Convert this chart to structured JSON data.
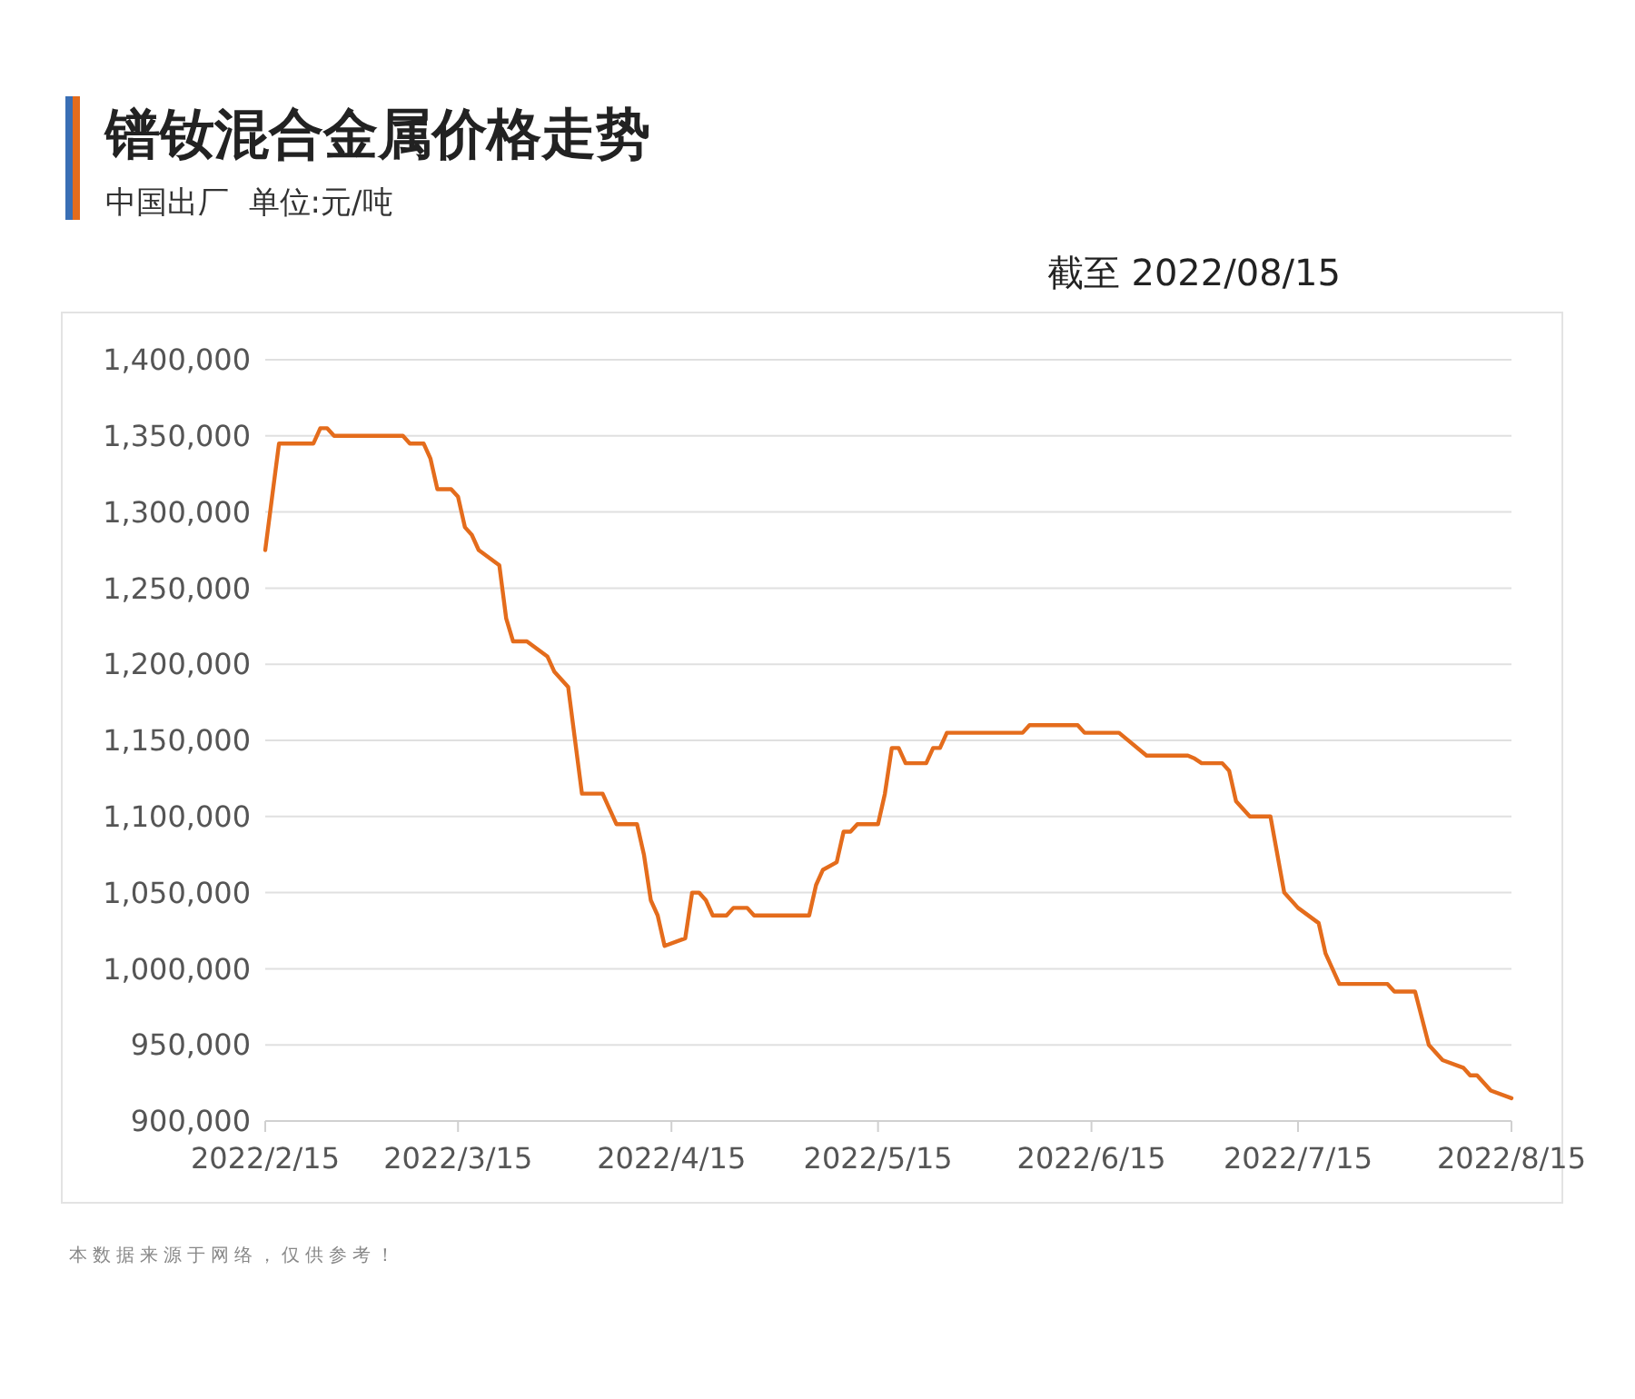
{
  "chart_data": {
    "type": "line",
    "title": "镨钕混合金属价格走势",
    "subtitle": "中国出厂  单位:元/吨",
    "annotations": [
      "截至 2022/08/15",
      "本数据来源于网络，仅供参考！"
    ],
    "x": [
      "2022-02-15",
      "2022-02-17",
      "2022-02-22",
      "2022-02-23",
      "2022-02-24",
      "2022-02-25",
      "2022-03-07",
      "2022-03-08",
      "2022-03-10",
      "2022-03-11",
      "2022-03-12",
      "2022-03-14",
      "2022-03-15",
      "2022-03-16",
      "2022-03-17",
      "2022-03-18",
      "2022-03-21",
      "2022-03-22",
      "2022-03-23",
      "2022-03-25",
      "2022-03-28",
      "2022-03-29",
      "2022-03-31",
      "2022-04-02",
      "2022-04-05",
      "2022-04-07",
      "2022-04-10",
      "2022-04-11",
      "2022-04-12",
      "2022-04-13",
      "2022-04-14",
      "2022-04-17",
      "2022-04-18",
      "2022-04-19",
      "2022-04-20",
      "2022-04-21",
      "2022-04-23",
      "2022-04-24",
      "2022-04-26",
      "2022-04-27",
      "2022-05-05",
      "2022-05-06",
      "2022-05-07",
      "2022-05-09",
      "2022-05-10",
      "2022-05-11",
      "2022-05-12",
      "2022-05-15",
      "2022-05-16",
      "2022-05-17",
      "2022-05-18",
      "2022-05-19",
      "2022-05-22",
      "2022-05-23",
      "2022-05-24",
      "2022-05-25",
      "2022-06-05",
      "2022-06-06",
      "2022-06-13",
      "2022-06-14",
      "2022-06-19",
      "2022-06-23",
      "2022-06-29",
      "2022-06-30",
      "2022-07-01",
      "2022-07-04",
      "2022-07-05",
      "2022-07-06",
      "2022-07-08",
      "2022-07-11",
      "2022-07-13",
      "2022-07-15",
      "2022-07-18",
      "2022-07-19",
      "2022-07-21",
      "2022-07-28",
      "2022-07-29",
      "2022-08-01",
      "2022-08-03",
      "2022-08-05",
      "2022-08-08",
      "2022-08-09",
      "2022-08-10",
      "2022-08-12",
      "2022-08-15"
    ],
    "series": [
      {
        "color": "#e46c1c",
        "values": [
          1275000,
          1345000,
          1345000,
          1355000,
          1355000,
          1350000,
          1350000,
          1345000,
          1345000,
          1335000,
          1315000,
          1315000,
          1310000,
          1290000,
          1285000,
          1275000,
          1265000,
          1230000,
          1215000,
          1215000,
          1205000,
          1195000,
          1185000,
          1115000,
          1115000,
          1095000,
          1095000,
          1075000,
          1045000,
          1035000,
          1015000,
          1020000,
          1050000,
          1050000,
          1045000,
          1035000,
          1035000,
          1040000,
          1040000,
          1035000,
          1035000,
          1055000,
          1065000,
          1070000,
          1090000,
          1090000,
          1095000,
          1095000,
          1115000,
          1145000,
          1145000,
          1135000,
          1135000,
          1145000,
          1145000,
          1155000,
          1155000,
          1160000,
          1160000,
          1155000,
          1155000,
          1140000,
          1140000,
          1138000,
          1135000,
          1135000,
          1130000,
          1110000,
          1100000,
          1100000,
          1050000,
          1040000,
          1030000,
          1010000,
          990000,
          990000,
          985000,
          985000,
          950000,
          940000,
          935000,
          930000,
          930000,
          920000,
          915000
        ]
      }
    ],
    "xlim": [
      "2022-02-15",
      "2022-08-15"
    ],
    "xticks": [
      {
        "value": "2022-02-15",
        "label": "2022/2/15"
      },
      {
        "value": "2022-03-15",
        "label": "2022/3/15"
      },
      {
        "value": "2022-04-15",
        "label": "2022/4/15"
      },
      {
        "value": "2022-05-15",
        "label": "2022/5/15"
      },
      {
        "value": "2022-06-15",
        "label": "2022/6/15"
      },
      {
        "value": "2022-07-15",
        "label": "2022/7/15"
      },
      {
        "value": "2022-08-15",
        "label": "2022/8/15"
      }
    ],
    "ylim": [
      900000,
      1400000
    ],
    "yticks": [
      {
        "value": 900000,
        "label": "900,000"
      },
      {
        "value": 950000,
        "label": "950,000"
      },
      {
        "value": 1000000,
        "label": "1,000,000"
      },
      {
        "value": 1050000,
        "label": "1,050,000"
      },
      {
        "value": 1100000,
        "label": "1,100,000"
      },
      {
        "value": 1150000,
        "label": "1,150,000"
      },
      {
        "value": 1200000,
        "label": "1,200,000"
      },
      {
        "value": 1250000,
        "label": "1,250,000"
      },
      {
        "value": 1300000,
        "label": "1,300,000"
      },
      {
        "value": 1350000,
        "label": "1,350,000"
      },
      {
        "value": 1400000,
        "label": "1,400,000"
      }
    ],
    "grid": "y",
    "line_style": "solid"
  }
}
